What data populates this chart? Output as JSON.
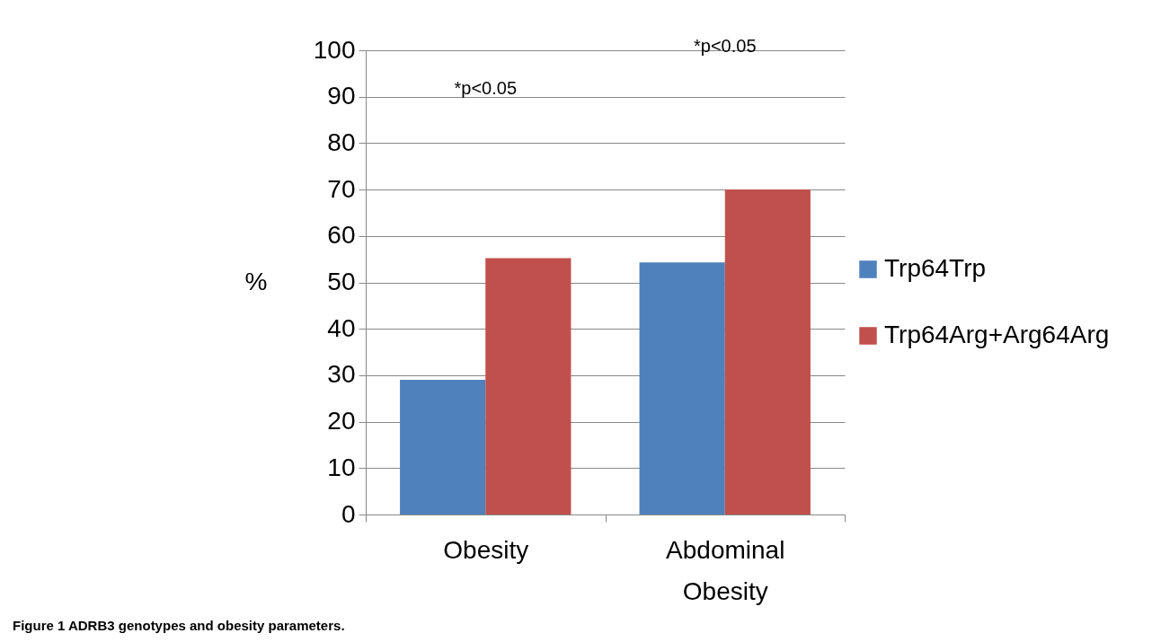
{
  "chart_data": {
    "type": "bar",
    "categories": [
      "Obesity",
      "Abdominal Obesity"
    ],
    "series": [
      {
        "name": "Trp64Trp",
        "color": "#4f81bd",
        "values": [
          29,
          54.3
        ]
      },
      {
        "name": "Trp64Arg+Arg64Arg",
        "color": "#c0504d",
        "values": [
          55.2,
          70
        ]
      }
    ],
    "ylabel": "%",
    "ylim": [
      0,
      100
    ],
    "yticks": [
      0,
      10,
      20,
      30,
      40,
      50,
      60,
      70,
      80,
      90,
      100
    ],
    "grid": "y",
    "legend": "right",
    "annotations": [
      "*p<0.05",
      "*p<0.05",
      "Figure 1 ADRB3 genotypes and obesity parameters."
    ]
  }
}
